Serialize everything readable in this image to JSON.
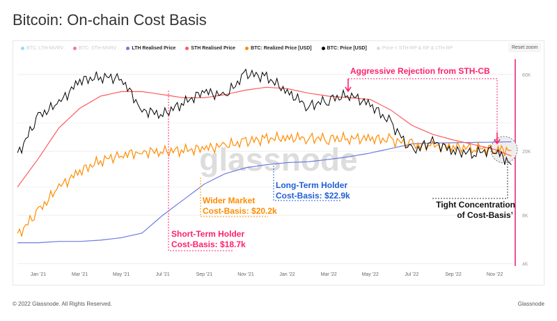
{
  "title": "Bitcoin: On-chain Cost Basis",
  "reset_zoom": "Reset zoom",
  "footer": {
    "copyright": "© 2022 Glassnode. All Rights Reserved.",
    "brand": "Glassnode"
  },
  "watermark": "glassnode",
  "legend": [
    {
      "label": "BTC: LTH-MVRV",
      "color": "#4fc3f7",
      "active": false
    },
    {
      "label": "BTC: STH-MVRV",
      "color": "#e91e63",
      "active": false
    },
    {
      "label": "LTH Realised Price",
      "color": "#6b7be0",
      "active": true
    },
    {
      "label": "STH Realised Price",
      "color": "#ff5a5a",
      "active": true
    },
    {
      "label": "BTC: Realized Price [USD]",
      "color": "#ff8c00",
      "active": true
    },
    {
      "label": "BTC: Price [USD]",
      "color": "#000000",
      "active": true
    },
    {
      "label": "Price < STH-RP & RP & LTH-RP",
      "color": "#d9ccff",
      "active": false
    }
  ],
  "annotations": {
    "rejection": "Aggressive Rejection from STH-CB",
    "sth_1": "Short-Term Holder",
    "sth_2": "Cost-Basis: $18.7k",
    "rp_1": "Wider Market",
    "rp_2": "Cost-Basis: $20.2k",
    "lth_1": "Long-Term Holder",
    "lth_2": "Cost-Basis: $22.9k",
    "tight_1": "Tight Concentration",
    "tight_2": "of Cost-Basis’"
  },
  "chart_data": {
    "type": "line",
    "title": "Bitcoin: On-chain Cost Basis",
    "yscale": "log",
    "ylim": [
      4000,
      90000
    ],
    "x_ticks": [
      "Jan '21",
      "Mar '21",
      "May '21",
      "Jul '21",
      "Sep '21",
      "Nov '21",
      "Jan '22",
      "Mar '22",
      "May '22",
      "Jul '22",
      "Sep '22",
      "Nov '22"
    ],
    "y_ticks": [
      {
        "label": "60K",
        "value": 60000
      },
      {
        "label": "20K",
        "value": 20000
      },
      {
        "label": "8K",
        "value": 8000
      },
      {
        "label": "4K",
        "value": 4000
      }
    ],
    "x_months_since_jan21": [
      -1,
      0,
      1,
      2,
      3,
      4,
      5,
      6,
      7,
      8,
      9,
      10,
      11,
      12,
      13,
      14,
      15,
      16,
      17,
      18,
      19,
      20,
      21,
      22,
      22.8
    ],
    "series": [
      {
        "name": "BTC: Price [USD]",
        "color": "#000000",
        "values": [
          19000,
          33000,
          40000,
          55000,
          58000,
          57000,
          36000,
          34000,
          40000,
          47000,
          44000,
          61000,
          58000,
          47000,
          38000,
          42000,
          45000,
          39000,
          30000,
          20000,
          23000,
          20000,
          19500,
          20500,
          16500
        ]
      },
      {
        "name": "STH Realised Price",
        "color": "#ff5a5a",
        "values": [
          12000,
          18000,
          28000,
          37000,
          44000,
          47000,
          47000,
          45000,
          43000,
          43000,
          45000,
          48000,
          50000,
          49000,
          46000,
          44000,
          43000,
          42000,
          36000,
          29000,
          25500,
          23500,
          22000,
          20500,
          18700
        ]
      },
      {
        "name": "BTC: Realized Price [USD]",
        "color": "#ff8c00",
        "values": [
          6000,
          8500,
          12000,
          15000,
          17500,
          19000,
          19800,
          20000,
          20300,
          20800,
          21700,
          23000,
          24000,
          24300,
          24200,
          24000,
          24100,
          24000,
          23500,
          22000,
          21600,
          21300,
          21000,
          20700,
          20200
        ]
      },
      {
        "name": "LTH Realised Price",
        "color": "#6b7be0",
        "values": [
          5400,
          5400,
          5500,
          5500,
          5600,
          5800,
          6200,
          8000,
          10000,
          12500,
          14500,
          15800,
          16500,
          17000,
          17200,
          17800,
          18500,
          19500,
          20800,
          22200,
          22500,
          22600,
          22700,
          22800,
          22900
        ]
      }
    ]
  }
}
